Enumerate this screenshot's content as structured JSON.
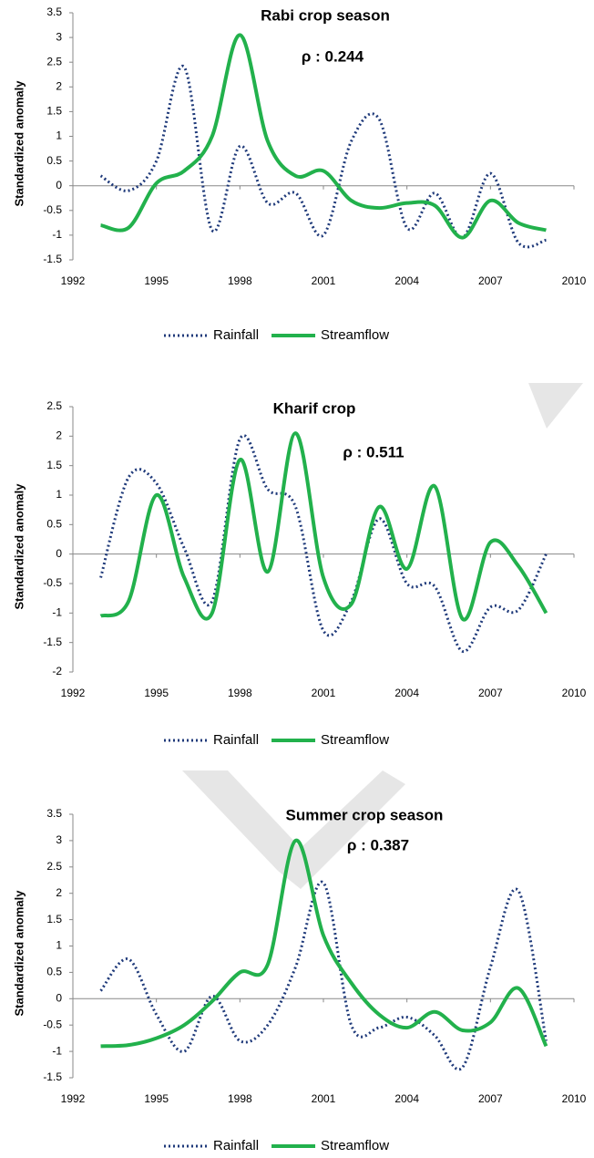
{
  "chart_data": [
    {
      "type": "line",
      "title": "Rabi crop season",
      "annotation": "ρ : 0.244",
      "ylabel": "Standardized anomaly",
      "x": [
        1993,
        1994,
        1995,
        1996,
        1997,
        1998,
        1999,
        2000,
        2001,
        2002,
        2003,
        2004,
        2005,
        2006,
        2007,
        2008,
        2009
      ],
      "series": [
        {
          "name": "Rainfall",
          "color": "#1f3a7a",
          "style": "dotted",
          "values": [
            0.2,
            -0.1,
            0.5,
            2.4,
            -0.9,
            0.8,
            -0.35,
            -0.15,
            -1.0,
            0.9,
            1.35,
            -0.85,
            -0.15,
            -1.05,
            0.25,
            -1.15,
            -1.1
          ]
        },
        {
          "name": "Streamflow",
          "color": "#22b14c",
          "style": "solid",
          "values": [
            -0.8,
            -0.85,
            0.05,
            0.3,
            1.0,
            3.05,
            0.9,
            0.2,
            0.3,
            -0.3,
            -0.45,
            -0.35,
            -0.4,
            -1.05,
            -0.3,
            -0.75,
            -0.9
          ]
        }
      ],
      "xlim": [
        1992,
        2010
      ],
      "xticks": [
        1992,
        1995,
        1998,
        2001,
        2004,
        2007,
        2010
      ],
      "ylim": [
        -1.5,
        3.5
      ],
      "yticks": [
        -1.5,
        -1,
        -0.5,
        0,
        0.5,
        1,
        1.5,
        2,
        2.5,
        3,
        3.5
      ],
      "legend": "bottom"
    },
    {
      "type": "line",
      "title": "Kharif crop",
      "annotation": "ρ : 0.511",
      "ylabel": "Standardized anomaly",
      "x": [
        1993,
        1994,
        1995,
        1996,
        1997,
        1998,
        1999,
        2000,
        2001,
        2002,
        2003,
        2004,
        2005,
        2006,
        2007,
        2008,
        2009
      ],
      "series": [
        {
          "name": "Rainfall",
          "color": "#1f3a7a",
          "style": "dotted",
          "values": [
            -0.4,
            1.3,
            1.2,
            0.1,
            -0.8,
            1.95,
            1.1,
            0.8,
            -1.3,
            -0.8,
            0.6,
            -0.5,
            -0.55,
            -1.65,
            -0.9,
            -0.95,
            0.0
          ]
        },
        {
          "name": "Streamflow",
          "color": "#22b14c",
          "style": "solid",
          "values": [
            -1.05,
            -0.8,
            1.0,
            -0.4,
            -1.0,
            1.6,
            -0.3,
            2.05,
            -0.4,
            -0.85,
            0.8,
            -0.25,
            1.15,
            -1.1,
            0.2,
            -0.2,
            -1.0
          ]
        }
      ],
      "xlim": [
        1992,
        2010
      ],
      "xticks": [
        1992,
        1995,
        1998,
        2001,
        2004,
        2007,
        2010
      ],
      "ylim": [
        -2,
        2.5
      ],
      "yticks": [
        -2,
        -1.5,
        -1,
        -0.5,
        0,
        0.5,
        1,
        1.5,
        2,
        2.5
      ],
      "legend": "bottom"
    },
    {
      "type": "line",
      "title": "Summer crop season",
      "annotation": "ρ : 0.387",
      "ylabel": "Standardized anomaly",
      "x": [
        1993,
        1994,
        1995,
        1996,
        1997,
        1998,
        1999,
        2000,
        2001,
        2002,
        2003,
        2004,
        2005,
        2006,
        2007,
        2008,
        2009
      ],
      "series": [
        {
          "name": "Rainfall",
          "color": "#1f3a7a",
          "style": "dotted",
          "values": [
            0.15,
            0.75,
            -0.3,
            -1.0,
            0.05,
            -0.8,
            -0.5,
            0.6,
            2.2,
            -0.5,
            -0.55,
            -0.35,
            -0.7,
            -1.3,
            0.6,
            2.05,
            -0.8
          ]
        },
        {
          "name": "Streamflow",
          "color": "#22b14c",
          "style": "solid",
          "values": [
            -0.9,
            -0.88,
            -0.75,
            -0.5,
            -0.05,
            0.5,
            0.65,
            3.0,
            1.2,
            0.3,
            -0.3,
            -0.55,
            -0.25,
            -0.6,
            -0.45,
            0.2,
            -0.9
          ]
        }
      ],
      "xlim": [
        1992,
        2010
      ],
      "xticks": [
        1992,
        1995,
        1998,
        2001,
        2004,
        2007,
        2010
      ],
      "ylim": [
        -1.5,
        3.5
      ],
      "yticks": [
        -1.5,
        -1,
        -0.5,
        0,
        0.5,
        1,
        1.5,
        2,
        2.5,
        3,
        3.5
      ],
      "legend": "bottom"
    }
  ]
}
